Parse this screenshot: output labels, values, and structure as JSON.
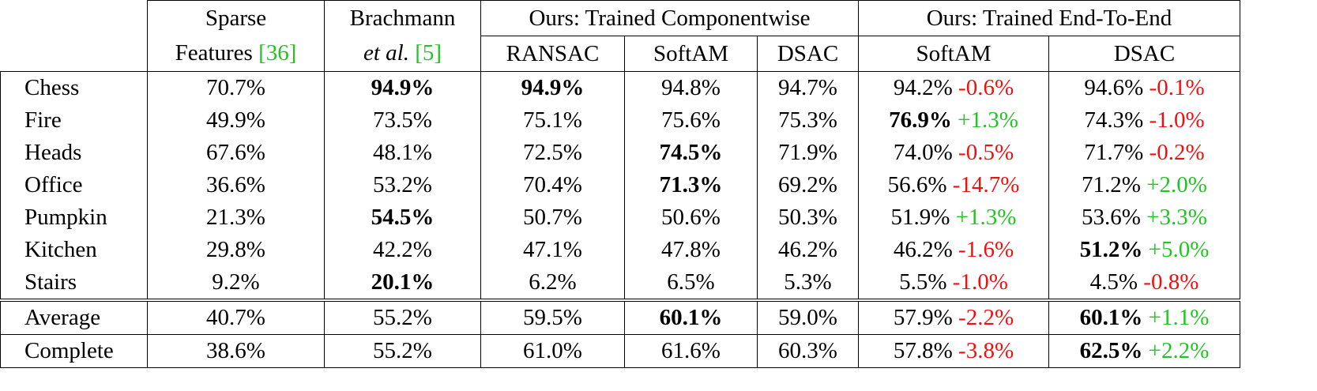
{
  "header": {
    "group_sparse_line1": "Sparse",
    "group_sparse_line2": "Features",
    "group_sparse_cite": "[36]",
    "group_brach_line1": "Brachmann",
    "group_brach_line2_italic": "et al.",
    "group_brach_cite": "[5]",
    "group_componentwise": "Ours: Trained Componentwise",
    "group_endtoend": "Ours: Trained End-To-End",
    "sub_ransac": "RANSAC",
    "sub_softam_cw": "SoftAM",
    "sub_dsac_cw": "DSAC",
    "sub_softam_e2e": "SoftAM",
    "sub_dsac_e2e": "DSAC"
  },
  "rows": [
    {
      "label": "Chess",
      "sparse": "70.7%",
      "brach": "94.9%",
      "ransac": "94.9%",
      "softam": "94.8%",
      "dsac": "94.7%",
      "e2e_softam": "94.2%",
      "e2e_softam_delta": "-0.6%",
      "e2e_dsac": "94.6%",
      "e2e_dsac_delta": "-0.1%"
    },
    {
      "label": "Fire",
      "sparse": "49.9%",
      "brach": "73.5%",
      "ransac": "75.1%",
      "softam": "75.6%",
      "dsac": "75.3%",
      "e2e_softam": "76.9%",
      "e2e_softam_delta": "+1.3%",
      "e2e_dsac": "74.3%",
      "e2e_dsac_delta": "-1.0%"
    },
    {
      "label": "Heads",
      "sparse": "67.6%",
      "brach": "48.1%",
      "ransac": "72.5%",
      "softam": "74.5%",
      "dsac": "71.9%",
      "e2e_softam": "74.0%",
      "e2e_softam_delta": "-0.5%",
      "e2e_dsac": "71.7%",
      "e2e_dsac_delta": "-0.2%"
    },
    {
      "label": "Office",
      "sparse": "36.6%",
      "brach": "53.2%",
      "ransac": "70.4%",
      "softam": "71.3%",
      "dsac": "69.2%",
      "e2e_softam": "56.6%",
      "e2e_softam_delta": "-14.7%",
      "e2e_dsac": "71.2%",
      "e2e_dsac_delta": "+2.0%"
    },
    {
      "label": "Pumpkin",
      "sparse": "21.3%",
      "brach": "54.5%",
      "ransac": "50.7%",
      "softam": "50.6%",
      "dsac": "50.3%",
      "e2e_softam": "51.9%",
      "e2e_softam_delta": "+1.3%",
      "e2e_dsac": "53.6%",
      "e2e_dsac_delta": "+3.3%"
    },
    {
      "label": "Kitchen",
      "sparse": "29.8%",
      "brach": "42.2%",
      "ransac": "47.1%",
      "softam": "47.8%",
      "dsac": "46.2%",
      "e2e_softam": "46.2%",
      "e2e_softam_delta": "-1.6%",
      "e2e_dsac": "51.2%",
      "e2e_dsac_delta": "+5.0%"
    },
    {
      "label": "Stairs",
      "sparse": "9.2%",
      "brach": "20.1%",
      "ransac": "6.2%",
      "softam": "6.5%",
      "dsac": "5.3%",
      "e2e_softam": "5.5%",
      "e2e_softam_delta": "-1.0%",
      "e2e_dsac": "4.5%",
      "e2e_dsac_delta": "-0.8%"
    }
  ],
  "average": {
    "label": "Average",
    "sparse": "40.7%",
    "brach": "55.2%",
    "ransac": "59.5%",
    "softam": "60.1%",
    "dsac": "59.0%",
    "e2e_softam": "57.9%",
    "e2e_softam_delta": "-2.2%",
    "e2e_dsac": "60.1%",
    "e2e_dsac_delta": "+1.1%"
  },
  "complete": {
    "label": "Complete",
    "sparse": "38.6%",
    "brach": "55.2%",
    "ransac": "61.0%",
    "softam": "61.6%",
    "dsac": "60.3%",
    "e2e_softam": "57.8%",
    "e2e_softam_delta": "-3.8%",
    "e2e_dsac": "62.5%",
    "e2e_dsac_delta": "+2.2%"
  },
  "colors": {
    "citation": "#22c422",
    "negative_delta": "#ee1111",
    "positive_delta": "#22c422"
  }
}
